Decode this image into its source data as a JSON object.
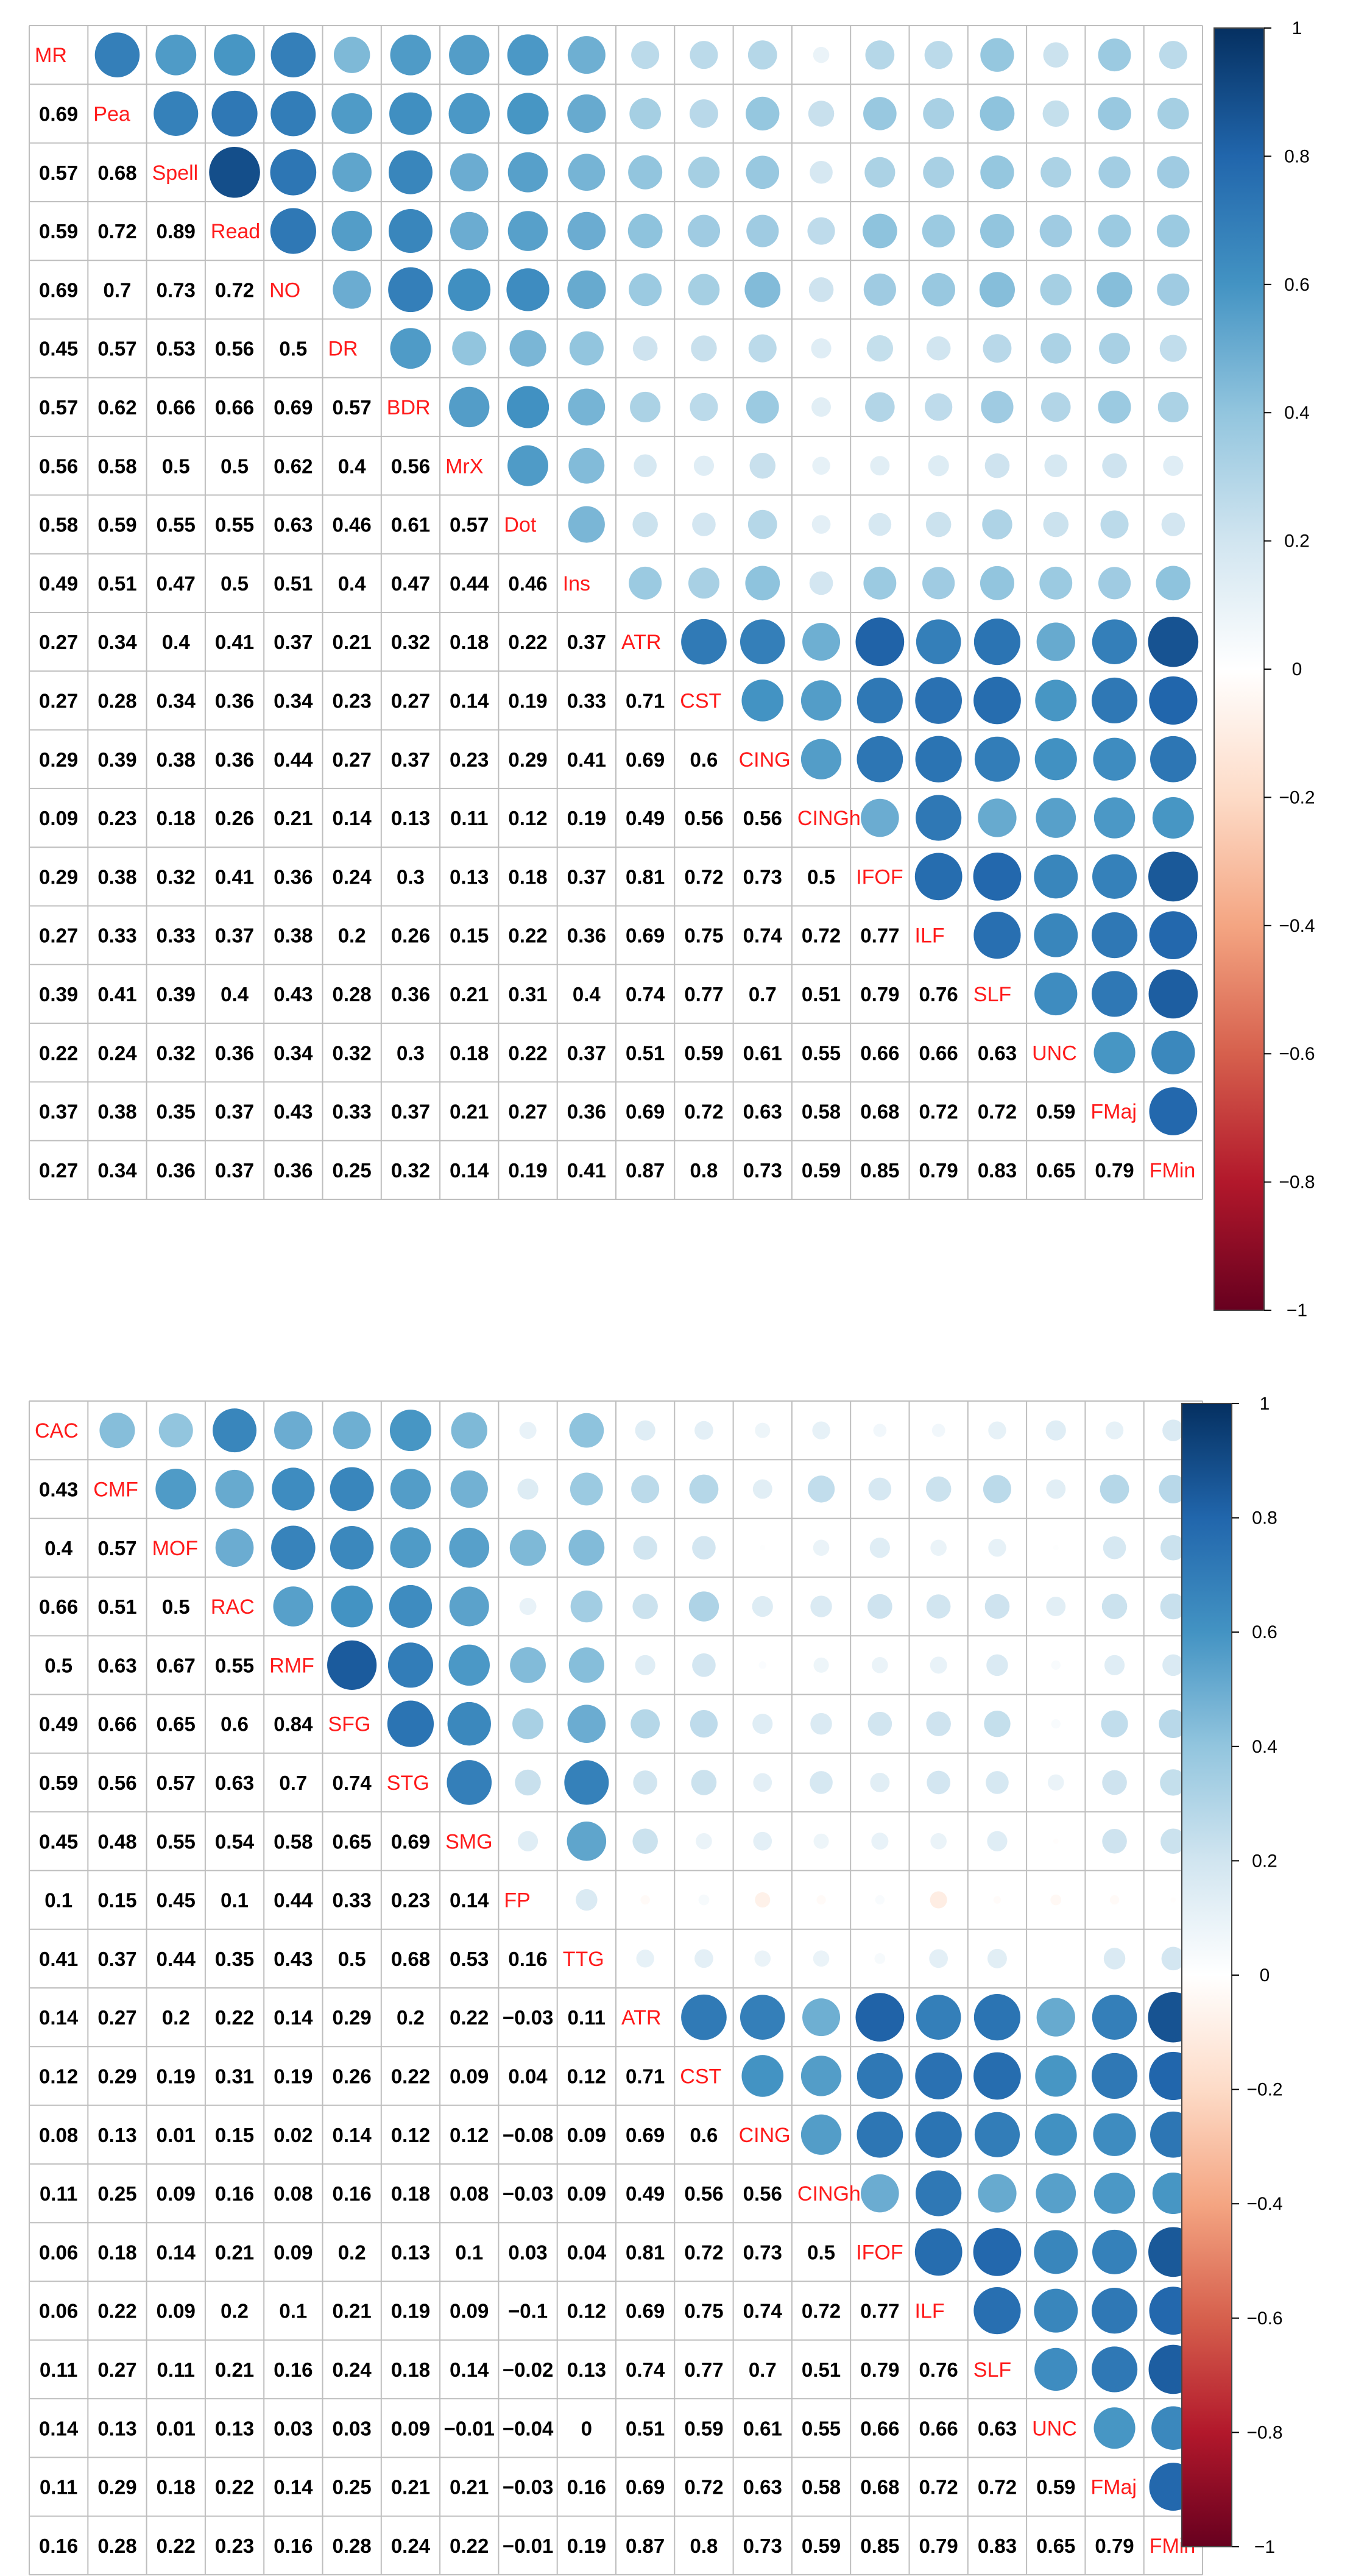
{
  "colors": {
    "neg_dark": "#67001F",
    "neg_mid": "#D6604D",
    "neg_light": "#FDDBC7",
    "zero": "#FFFFFF",
    "pos_light": "#D1E5F0",
    "pos_mid": "#4393C3",
    "pos_dark": "#053061",
    "grid": "#BEBEBE",
    "diag_label": "#FF1A1A"
  },
  "chart_data": [
    {
      "type": "heatmap",
      "style": "corrplot circle (upper triangle) with numbers (lower triangle)",
      "variables": [
        "MR",
        "Pea",
        "Spell",
        "Read",
        "NO",
        "DR",
        "BDR",
        "MrX",
        "Dot",
        "Ins",
        "ATR",
        "CST",
        "CING",
        "CINGh",
        "IFOF",
        "ILF",
        "SLF",
        "UNC",
        "FMaj",
        "FMin"
      ],
      "lower": [
        [],
        [
          0.69
        ],
        [
          0.57,
          0.68
        ],
        [
          0.59,
          0.72,
          0.89
        ],
        [
          0.69,
          0.7,
          0.73,
          0.72
        ],
        [
          0.45,
          0.57,
          0.53,
          0.56,
          0.5
        ],
        [
          0.57,
          0.62,
          0.66,
          0.66,
          0.69,
          0.57
        ],
        [
          0.56,
          0.58,
          0.5,
          0.5,
          0.62,
          0.4,
          0.56
        ],
        [
          0.58,
          0.59,
          0.55,
          0.55,
          0.63,
          0.46,
          0.61,
          0.57
        ],
        [
          0.49,
          0.51,
          0.47,
          0.5,
          0.51,
          0.4,
          0.47,
          0.44,
          0.46
        ],
        [
          0.27,
          0.34,
          0.4,
          0.41,
          0.37,
          0.21,
          0.32,
          0.18,
          0.22,
          0.37
        ],
        [
          0.27,
          0.28,
          0.34,
          0.36,
          0.34,
          0.23,
          0.27,
          0.14,
          0.19,
          0.33,
          0.71
        ],
        [
          0.29,
          0.39,
          0.38,
          0.36,
          0.44,
          0.27,
          0.37,
          0.23,
          0.29,
          0.41,
          0.69,
          0.6
        ],
        [
          0.09,
          0.23,
          0.18,
          0.26,
          0.21,
          0.14,
          0.13,
          0.11,
          0.12,
          0.19,
          0.49,
          0.56,
          0.56
        ],
        [
          0.29,
          0.38,
          0.32,
          0.41,
          0.36,
          0.24,
          0.3,
          0.13,
          0.18,
          0.37,
          0.81,
          0.72,
          0.73,
          0.5
        ],
        [
          0.27,
          0.33,
          0.33,
          0.37,
          0.38,
          0.2,
          0.26,
          0.15,
          0.22,
          0.36,
          0.69,
          0.75,
          0.74,
          0.72,
          0.77
        ],
        [
          0.39,
          0.41,
          0.39,
          0.4,
          0.43,
          0.28,
          0.36,
          0.21,
          0.31,
          0.4,
          0.74,
          0.77,
          0.7,
          0.51,
          0.79,
          0.76
        ],
        [
          0.22,
          0.24,
          0.32,
          0.36,
          0.34,
          0.32,
          0.3,
          0.18,
          0.22,
          0.37,
          0.51,
          0.59,
          0.61,
          0.55,
          0.66,
          0.66,
          0.63
        ],
        [
          0.37,
          0.38,
          0.35,
          0.37,
          0.43,
          0.33,
          0.37,
          0.21,
          0.27,
          0.36,
          0.69,
          0.72,
          0.63,
          0.58,
          0.68,
          0.72,
          0.72,
          0.59
        ],
        [
          0.27,
          0.34,
          0.36,
          0.37,
          0.36,
          0.25,
          0.32,
          0.14,
          0.19,
          0.41,
          0.87,
          0.8,
          0.73,
          0.59,
          0.85,
          0.79,
          0.83,
          0.65,
          0.79
        ]
      ],
      "legend_ticks": [
        "1",
        "0.8",
        "0.6",
        "0.4",
        "0.2",
        "0",
        "−0.2",
        "−0.4",
        "−0.6",
        "−0.8",
        "−1"
      ],
      "value_range": [
        -1,
        1
      ],
      "legend_position": "right"
    },
    {
      "type": "heatmap",
      "style": "corrplot circle (upper triangle) with numbers (lower triangle)",
      "variables": [
        "CAC",
        "CMF",
        "MOF",
        "RAC",
        "RMF",
        "SFG",
        "STG",
        "SMG",
        "FP",
        "TTG",
        "ATR",
        "CST",
        "CING",
        "CINGh",
        "IFOF",
        "ILF",
        "SLF",
        "UNC",
        "FMaj",
        "FMin"
      ],
      "lower": [
        [],
        [
          0.43
        ],
        [
          0.4,
          0.57
        ],
        [
          0.66,
          0.51,
          0.5
        ],
        [
          0.5,
          0.63,
          0.67,
          0.55
        ],
        [
          0.49,
          0.66,
          0.65,
          0.6,
          0.84
        ],
        [
          0.59,
          0.56,
          0.57,
          0.63,
          0.7,
          0.74
        ],
        [
          0.45,
          0.48,
          0.55,
          0.54,
          0.58,
          0.65,
          0.69
        ],
        [
          0.1,
          0.15,
          0.45,
          0.1,
          0.44,
          0.33,
          0.23,
          0.14
        ],
        [
          0.41,
          0.37,
          0.44,
          0.35,
          0.43,
          0.5,
          0.68,
          0.53,
          0.16
        ],
        [
          0.14,
          0.27,
          0.2,
          0.22,
          0.14,
          0.29,
          0.2,
          0.22,
          -0.03,
          0.11
        ],
        [
          0.12,
          0.29,
          0.19,
          0.31,
          0.19,
          0.26,
          0.22,
          0.09,
          0.04,
          0.12,
          0.71
        ],
        [
          0.08,
          0.13,
          0.01,
          0.15,
          0.02,
          0.14,
          0.12,
          0.12,
          -0.08,
          0.09,
          0.69,
          0.6
        ],
        [
          0.11,
          0.25,
          0.09,
          0.16,
          0.08,
          0.16,
          0.18,
          0.08,
          -0.03,
          0.09,
          0.49,
          0.56,
          0.56
        ],
        [
          0.06,
          0.18,
          0.14,
          0.21,
          0.09,
          0.2,
          0.13,
          0.1,
          0.03,
          0.04,
          0.81,
          0.72,
          0.73,
          0.5
        ],
        [
          0.06,
          0.22,
          0.09,
          0.2,
          0.1,
          0.21,
          0.19,
          0.09,
          -0.1,
          0.12,
          0.69,
          0.75,
          0.74,
          0.72,
          0.77
        ],
        [
          0.11,
          0.27,
          0.11,
          0.21,
          0.16,
          0.24,
          0.18,
          0.14,
          -0.02,
          0.13,
          0.74,
          0.77,
          0.7,
          0.51,
          0.79,
          0.76
        ],
        [
          0.14,
          0.13,
          0.01,
          0.13,
          0.03,
          0.03,
          0.09,
          -0.01,
          -0.04,
          0,
          0.51,
          0.59,
          0.61,
          0.55,
          0.66,
          0.66,
          0.63
        ],
        [
          0.11,
          0.29,
          0.18,
          0.22,
          0.14,
          0.25,
          0.21,
          0.21,
          -0.03,
          0.16,
          0.69,
          0.72,
          0.63,
          0.58,
          0.68,
          0.72,
          0.72,
          0.59
        ],
        [
          0.16,
          0.28,
          0.22,
          0.23,
          0.16,
          0.28,
          0.24,
          0.22,
          -0.01,
          0.19,
          0.87,
          0.8,
          0.73,
          0.59,
          0.85,
          0.79,
          0.83,
          0.65,
          0.79
        ]
      ],
      "legend_ticks": [
        "1",
        "0.8",
        "0.6",
        "0.4",
        "0.2",
        "0",
        "−0.2",
        "−0.4",
        "−0.6",
        "−0.8",
        "−1"
      ],
      "value_range": [
        -1,
        1
      ],
      "legend_position": "right"
    }
  ]
}
